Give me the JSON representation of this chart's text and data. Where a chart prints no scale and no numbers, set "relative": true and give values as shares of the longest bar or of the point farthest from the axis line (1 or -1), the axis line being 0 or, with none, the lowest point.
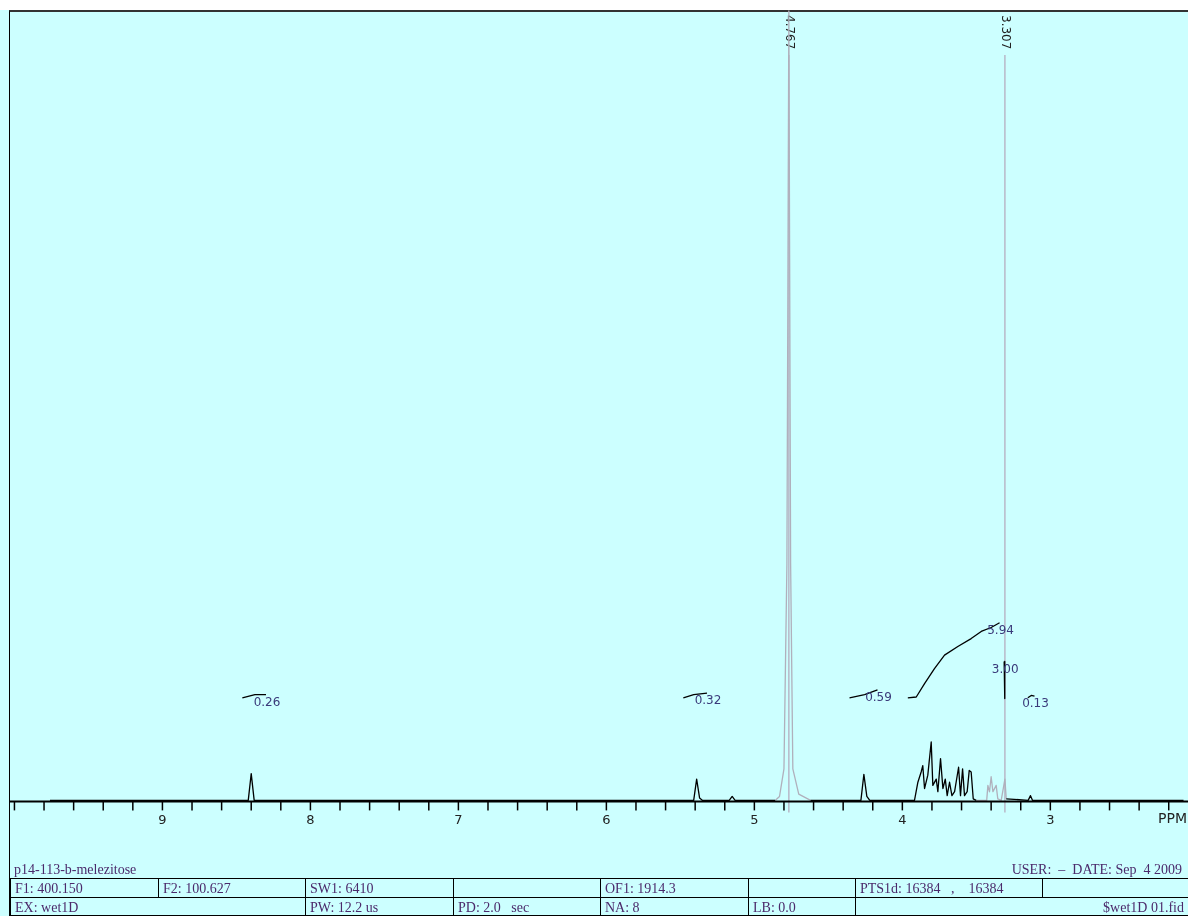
{
  "chart_data": {
    "type": "line",
    "relative": true,
    "title": "p14-113-b-melezitose",
    "xlabel": "PPM",
    "xlim": [
      10.03,
      2.09
    ],
    "xticks": [
      {
        "value": 10,
        "label": null
      },
      {
        "value": 9.8,
        "label": null
      },
      {
        "value": 9.6,
        "label": null
      },
      {
        "value": 9.4,
        "label": null
      },
      {
        "value": 9.2,
        "label": null
      },
      9,
      {
        "value": 8.8,
        "label": null
      },
      {
        "value": 8.6,
        "label": null
      },
      {
        "value": 8.4,
        "label": null
      },
      {
        "value": 8.2,
        "label": null
      },
      8,
      {
        "value": 7.8,
        "label": null
      },
      {
        "value": 7.6,
        "label": null
      },
      {
        "value": 7.4,
        "label": null
      },
      {
        "value": 7.2,
        "label": null
      },
      7,
      {
        "value": 6.8,
        "label": null
      },
      {
        "value": 6.6,
        "label": null
      },
      {
        "value": 6.4,
        "label": null
      },
      {
        "value": 6.2,
        "label": null
      },
      6,
      {
        "value": 5.8,
        "label": null
      },
      {
        "value": 5.6,
        "label": null
      },
      {
        "value": 5.4,
        "label": null
      },
      {
        "value": 5.2,
        "label": null
      },
      5,
      {
        "value": 4.8,
        "label": null
      },
      {
        "value": 4.6,
        "label": null
      },
      {
        "value": 4.4,
        "label": null
      },
      {
        "value": 4.2,
        "label": null
      },
      4,
      {
        "value": 3.8,
        "label": null
      },
      {
        "value": 3.6,
        "label": null
      },
      {
        "value": 3.4,
        "label": null
      },
      {
        "value": 3.2,
        "label": null
      },
      3,
      {
        "value": 2.8,
        "label": null
      },
      {
        "value": 2.6,
        "label": null
      },
      {
        "value": 2.4,
        "label": null
      },
      {
        "value": 2.2,
        "label": null
      }
    ],
    "ref_lines": [
      {
        "axis": "x",
        "value": 4.767,
        "label": "4.767",
        "color": "#b8b8c8"
      },
      {
        "axis": "x",
        "value": 3.307,
        "label": "3.307",
        "color": "#b8b8c8"
      }
    ],
    "grid": false,
    "legend": false,
    "marker": "none",
    "line_style": "solid",
    "series": [
      {
        "color": "#000000",
        "x": [
          9.76,
          8.42,
          8.4,
          8.38,
          5.41,
          5.39,
          5.37,
          5.35,
          5.17,
          5.15,
          5.13,
          4.86,
          4.75,
          4.62,
          4.28,
          4.26,
          4.24,
          4.22,
          3.918,
          3.895,
          3.873,
          3.862,
          3.85,
          3.828,
          3.805,
          3.794,
          3.771,
          3.76,
          3.742,
          3.726,
          3.71,
          3.697,
          3.681,
          3.665,
          3.647,
          3.62,
          3.607,
          3.593,
          3.58,
          3.562,
          3.548,
          3.535,
          3.521,
          3.501,
          3.4,
          3.298,
          3.15,
          3.134,
          3.12,
          2.1
        ],
        "values": [
          0,
          0,
          0.034,
          0,
          0,
          0.027,
          0.003,
          0,
          0,
          0.005,
          0,
          0,
          null,
          0,
          0,
          0.033,
          0.005,
          0,
          0,
          0.023,
          0.036,
          0.044,
          0.015,
          0.032,
          0.074,
          0.019,
          0.027,
          0.011,
          0.053,
          0.015,
          0.027,
          0.006,
          0.023,
          0.006,
          0.011,
          0.042,
          0.006,
          0.04,
          0.006,
          0.011,
          0.038,
          0.036,
          0.002,
          0,
          null,
          0.002,
          0,
          0.006,
          0,
          0
        ]
      },
      {
        "color": "#b0b0bc",
        "x": [
          4.86,
          4.83,
          4.8,
          4.78,
          4.767,
          4.755,
          4.74,
          4.7,
          4.62,
          4.0,
          3.501,
          3.43,
          3.422,
          3.411,
          3.4,
          3.388,
          3.366,
          3.355,
          3.332,
          3.307,
          3.298
        ],
        "values": [
          0,
          0.005,
          0.04,
          0.3,
          1,
          0.3,
          0.04,
          0.008,
          0,
          null,
          0,
          0,
          0.019,
          0.011,
          0.03,
          0.011,
          0.019,
          0.002,
          0,
          0.027,
          0.002
        ]
      },
      {
        "color": "#000000",
        "x": [
          8.46,
          8.375,
          8.3
        ],
        "values": [
          0.13,
          0.134,
          0.134
        ]
      },
      {
        "color": "#000000",
        "x": [
          5.48,
          5.41,
          5.32
        ],
        "values": [
          0.13,
          0.134,
          0.136
        ]
      },
      {
        "color": "#000000",
        "x": [
          4.357,
          4.255,
          4.168
        ],
        "values": [
          0.13,
          0.134,
          0.14
        ]
      },
      {
        "color": "#000000",
        "x": [
          3.963,
          3.906,
          3.85,
          3.783,
          3.715,
          3.625,
          3.535,
          3.467,
          3.4,
          3.343
        ],
        "values": [
          0.13,
          0.131,
          0.148,
          0.167,
          0.184,
          0.195,
          0.205,
          0.214,
          0.219,
          0.225
        ]
      },
      {
        "color": "#000000",
        "x": [
          3.312,
          3.308
        ],
        "values": [
          0.176,
          0.129
        ]
      },
      {
        "color": "#000000",
        "x": [
          3.152,
          3.129,
          3.107
        ],
        "values": [
          0.13,
          0.133,
          0.132
        ]
      }
    ],
    "annotations": [
      {
        "text": "0.26",
        "x": 8.3,
        "y": 0.134
      },
      {
        "text": "0.32",
        "x": 5.32,
        "y": 0.136
      },
      {
        "text": "0.59",
        "x": 4.168,
        "y": 0.14
      },
      {
        "text": "5.94",
        "x": 3.343,
        "y": 0.225
      },
      {
        "text": "3.00",
        "x": 3.312,
        "y": 0.176
      },
      {
        "text": "0.13",
        "x": 3.107,
        "y": 0.132
      },
      "USER:  –  DATE: Sep  4 2009",
      "F1: 400.150",
      "F2: 100.627",
      "SW1: 6410",
      "OF1: 1914.3",
      "PTS1d: 16384   ,    16384",
      "EX: wet1D",
      "PW: 12.2 us",
      "PD: 2.0   sec",
      "NA: 8",
      "LB: 0.0",
      "$wet1D 01.fid"
    ]
  }
}
